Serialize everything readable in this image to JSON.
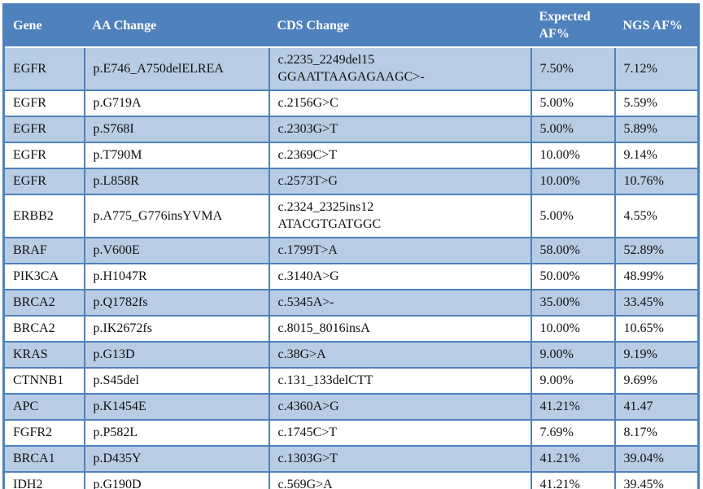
{
  "colors": {
    "header-bg": "#4f81bd",
    "row-alt-bg": "#b8cce4",
    "row-bg": "#ffffff",
    "border-color": "#4f81bd",
    "header-text": "#ffffff",
    "cell-text": "#111111"
  },
  "table": {
    "columns": {
      "gene": "Gene",
      "aa": "AA Change",
      "cds": "CDS Change",
      "expected": "Expected AF%",
      "ngs": "NGS AF%"
    },
    "rows": [
      {
        "gene": "EGFR",
        "aa": "p.E746_A750delELREA",
        "cds": "c.2235_2249del15\nGGAATTAAGAGAAGC>-",
        "expected": "7.50%",
        "ngs": "7.12%"
      },
      {
        "gene": "EGFR",
        "aa": "p.G719A",
        "cds": "c.2156G>C",
        "expected": "5.00%",
        "ngs": "5.59%"
      },
      {
        "gene": "EGFR",
        "aa": "p.S768I",
        "cds": "c.2303G>T",
        "expected": "5.00%",
        "ngs": "5.89%"
      },
      {
        "gene": "EGFR",
        "aa": "p.T790M",
        "cds": "c.2369C>T",
        "expected": "10.00%",
        "ngs": "9.14%"
      },
      {
        "gene": "EGFR",
        "aa": "p.L858R",
        "cds": "c.2573T>G",
        "expected": "10.00%",
        "ngs": "10.76%"
      },
      {
        "gene": "ERBB2",
        "aa": "p.A775_G776insYVMA",
        "cds": "c.2324_2325ins12\nATACGTGATGGC",
        "expected": "5.00%",
        "ngs": "4.55%"
      },
      {
        "gene": "BRAF",
        "aa": "p.V600E",
        "cds": "c.1799T>A",
        "expected": "58.00%",
        "ngs": "52.89%"
      },
      {
        "gene": "PIK3CA",
        "aa": "p.H1047R",
        "cds": "c.3140A>G",
        "expected": "50.00%",
        "ngs": "48.99%"
      },
      {
        "gene": "BRCA2",
        "aa": "p.Q1782fs",
        "cds": "c.5345A>-",
        "expected": "35.00%",
        "ngs": "33.45%"
      },
      {
        "gene": "BRCA2",
        "aa": "p.IK2672fs",
        "cds": "c.8015_8016insA",
        "expected": "10.00%",
        "ngs": "10.65%"
      },
      {
        "gene": "KRAS",
        "aa": "p.G13D",
        "cds": "c.38G>A",
        "expected": "9.00%",
        "ngs": "9.19%"
      },
      {
        "gene": "CTNNB1",
        "aa": "p.S45del",
        "cds": "c.131_133delCTT",
        "expected": "9.00%",
        "ngs": "9.69%"
      },
      {
        "gene": "APC",
        "aa": "p.K1454E",
        "cds": "c.4360A>G",
        "expected": "41.21%",
        "ngs": "41.47"
      },
      {
        "gene": "FGFR2",
        "aa": "p.P582L",
        "cds": "c.1745C>T",
        "expected": "7.69%",
        "ngs": "8.17%"
      },
      {
        "gene": "BRCA1",
        "aa": "p.D435Y",
        "cds": "c.1303G>T",
        "expected": "41.21%",
        "ngs": "39.04%"
      },
      {
        "gene": "IDH2",
        "aa": "p.G190D",
        "cds": "c.569G>A",
        "expected": "41.21%",
        "ngs": "39.45%"
      }
    ]
  }
}
